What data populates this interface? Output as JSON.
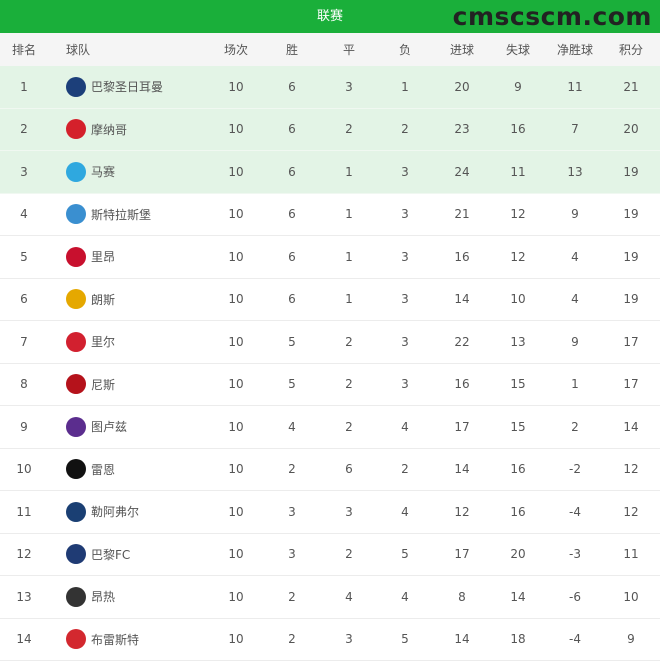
{
  "title": "联赛",
  "headers": [
    "排名",
    "球队",
    "场次",
    "胜",
    "平",
    "负",
    "进球",
    "失球",
    "净胜球",
    "积分"
  ],
  "highlight_color": "#e3f4e6",
  "accent": "#1aaf3a",
  "rows": [
    {
      "rank": "1",
      "team": "巴黎圣日耳曼",
      "logo": "#1c3f7a",
      "p": "10",
      "w": "6",
      "d": "3",
      "l": "1",
      "gf": "20",
      "ga": "9",
      "gd": "11",
      "pts": "21"
    },
    {
      "rank": "2",
      "team": "摩纳哥",
      "logo": "#d4202b",
      "p": "10",
      "w": "6",
      "d": "2",
      "l": "2",
      "gf": "23",
      "ga": "16",
      "gd": "7",
      "pts": "20"
    },
    {
      "rank": "3",
      "team": "马赛",
      "logo": "#2fa8df",
      "p": "10",
      "w": "6",
      "d": "1",
      "l": "3",
      "gf": "24",
      "ga": "11",
      "gd": "13",
      "pts": "19"
    },
    {
      "rank": "4",
      "team": "斯特拉斯堡",
      "logo": "#3a8fd0",
      "p": "10",
      "w": "6",
      "d": "1",
      "l": "3",
      "gf": "21",
      "ga": "12",
      "gd": "9",
      "pts": "19"
    },
    {
      "rank": "5",
      "team": "里昂",
      "logo": "#c8102e",
      "p": "10",
      "w": "6",
      "d": "1",
      "l": "3",
      "gf": "16",
      "ga": "12",
      "gd": "4",
      "pts": "19"
    },
    {
      "rank": "6",
      "team": "朗斯",
      "logo": "#e5a800",
      "p": "10",
      "w": "6",
      "d": "1",
      "l": "3",
      "gf": "14",
      "ga": "10",
      "gd": "4",
      "pts": "19"
    },
    {
      "rank": "7",
      "team": "里尔",
      "logo": "#d2202f",
      "p": "10",
      "w": "5",
      "d": "2",
      "l": "3",
      "gf": "22",
      "ga": "13",
      "gd": "9",
      "pts": "17"
    },
    {
      "rank": "8",
      "team": "尼斯",
      "logo": "#b5121b",
      "p": "10",
      "w": "5",
      "d": "2",
      "l": "3",
      "gf": "16",
      "ga": "15",
      "gd": "1",
      "pts": "17"
    },
    {
      "rank": "9",
      "team": "图卢兹",
      "logo": "#5b2d8e",
      "p": "10",
      "w": "4",
      "d": "2",
      "l": "4",
      "gf": "17",
      "ga": "15",
      "gd": "2",
      "pts": "14"
    },
    {
      "rank": "10",
      "team": "雷恩",
      "logo": "#111111",
      "p": "10",
      "w": "2",
      "d": "6",
      "l": "2",
      "gf": "14",
      "ga": "16",
      "gd": "-2",
      "pts": "12"
    },
    {
      "rank": "11",
      "team": "勒阿弗尔",
      "logo": "#1a3f73",
      "p": "10",
      "w": "3",
      "d": "3",
      "l": "4",
      "gf": "12",
      "ga": "16",
      "gd": "-4",
      "pts": "12"
    },
    {
      "rank": "12",
      "team": "巴黎FC",
      "logo": "#1f3b74",
      "p": "10",
      "w": "3",
      "d": "2",
      "l": "5",
      "gf": "17",
      "ga": "20",
      "gd": "-3",
      "pts": "11"
    },
    {
      "rank": "13",
      "team": "昂热",
      "logo": "#333333",
      "p": "10",
      "w": "2",
      "d": "4",
      "l": "4",
      "gf": "8",
      "ga": "14",
      "gd": "-6",
      "pts": "10"
    },
    {
      "rank": "14",
      "team": "布雷斯特",
      "logo": "#d3282f",
      "p": "10",
      "w": "2",
      "d": "3",
      "l": "5",
      "gf": "14",
      "ga": "18",
      "gd": "-4",
      "pts": "9"
    }
  ],
  "watermark": "cmscscm.com"
}
